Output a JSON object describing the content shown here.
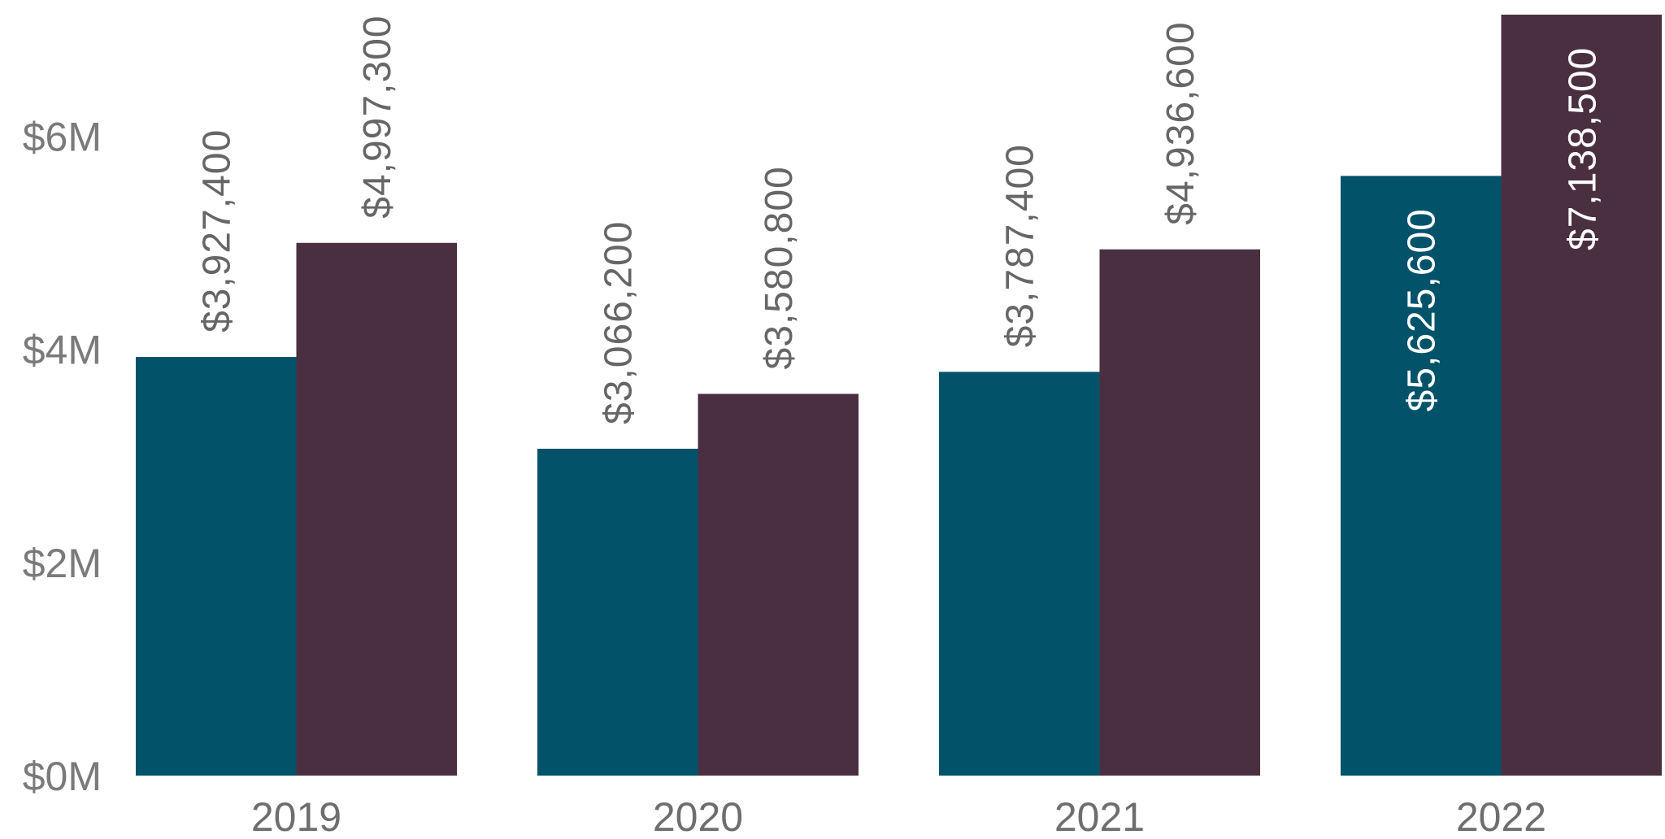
{
  "chart_data": {
    "type": "bar",
    "title": "",
    "xlabel": "",
    "ylabel": "",
    "categories": [
      "2019",
      "2020",
      "2021",
      "2022"
    ],
    "ylim": [
      0,
      7138500
    ],
    "yticks": [
      {
        "value": 0,
        "label": "$0M"
      },
      {
        "value": 2000000,
        "label": "$2M"
      },
      {
        "value": 4000000,
        "label": "$4M"
      },
      {
        "value": 6000000,
        "label": "$6M"
      }
    ],
    "grid": false,
    "legend": "none",
    "series": [
      {
        "color": "#02536a",
        "values": [
          3927400,
          3066200,
          3787400,
          5625600
        ],
        "labels": [
          "$3,927,400",
          "$3,066,200",
          "$3,787,400",
          "$5,625,600"
        ]
      },
      {
        "color": "#4a2f41",
        "values": [
          4997300,
          3580800,
          4936600,
          7138500
        ],
        "labels": [
          "$4,997,300",
          "$3,580,800",
          "$4,936,600",
          "$7,138,500"
        ]
      }
    ]
  }
}
